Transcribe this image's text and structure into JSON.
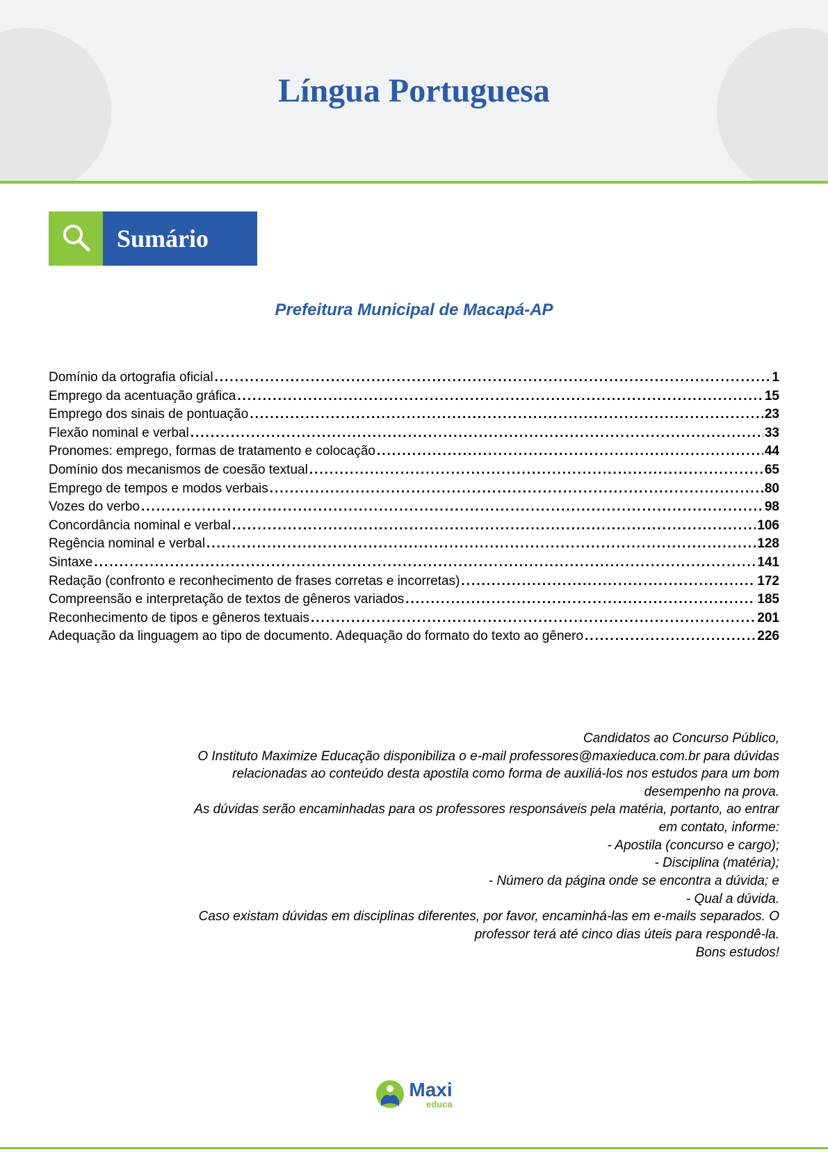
{
  "colors": {
    "brand_blue": "#2a5ba8",
    "brand_green": "#8cc63f",
    "header_bg": "#f1f2f3",
    "header_shape": "#e4e6e8",
    "text": "#000000",
    "white": "#ffffff"
  },
  "typography": {
    "title_fontsize": 48,
    "sumario_fontsize": 36,
    "subtitle_fontsize": 24,
    "body_fontsize": 19,
    "logo_main_fontsize": 28,
    "logo_sub_fontsize": 13
  },
  "header": {
    "title": "Língua Portuguesa"
  },
  "sumario": {
    "icon": "magnifier-icon",
    "label": "Sumário"
  },
  "subtitle": "Prefeitura Municipal de Macapá-AP",
  "toc": {
    "items": [
      {
        "topic": "Domínio da ortografia oficial",
        "page": "1"
      },
      {
        "topic": "Emprego da acentuação gráfica",
        "page": "15"
      },
      {
        "topic": "Emprego dos sinais de pontuação",
        "page": "23"
      },
      {
        "topic": "Flexão nominal e verbal",
        "page": "33"
      },
      {
        "topic": "Pronomes: emprego, formas de tratamento e colocação",
        "page": "44"
      },
      {
        "topic": "Domínio dos mecanismos de coesão textual",
        "page": "65"
      },
      {
        "topic": "Emprego de tempos e modos verbais",
        "page": "80"
      },
      {
        "topic": "Vozes do verbo",
        "page": "98"
      },
      {
        "topic": "Concordância nominal e verbal",
        "page": "106"
      },
      {
        "topic": "Regência nominal e verbal",
        "page": "128"
      },
      {
        "topic": "Sintaxe",
        "page": "141"
      },
      {
        "topic": "Redação (confronto e reconhecimento de frases corretas e incorretas)",
        "page": "172"
      },
      {
        "topic": "Compreensão e interpretação de textos de gêneros variados",
        "page": "185"
      },
      {
        "topic": "Reconhecimento de tipos e gêneros textuais",
        "page": "201"
      },
      {
        "topic": "Adequação da linguagem ao tipo de documento. Adequação do formato do texto ao gênero",
        "page": "226"
      }
    ]
  },
  "info": {
    "lines": [
      "Candidatos ao Concurso Público,",
      "O Instituto Maximize Educação disponibiliza o e-mail professores@maxieduca.com.br para dúvidas",
      "relacionadas ao conteúdo desta apostila como forma de auxiliá-los nos estudos para um bom",
      "desempenho na prova.",
      "As dúvidas serão encaminhadas para os professores responsáveis pela matéria, portanto, ao entrar",
      "em contato, informe:",
      "- Apostila (concurso e cargo);",
      "- Disciplina (matéria);",
      "- Número da página onde se encontra a dúvida; e",
      "- Qual a dúvida.",
      "Caso existam dúvidas em disciplinas diferentes, por favor, encaminhá-las em e-mails separados. O",
      "professor terá até cinco dias úteis para respondê-la.",
      "Bons estudos!"
    ]
  },
  "footer": {
    "logo_main": "Maxi",
    "logo_sub": "educa"
  }
}
